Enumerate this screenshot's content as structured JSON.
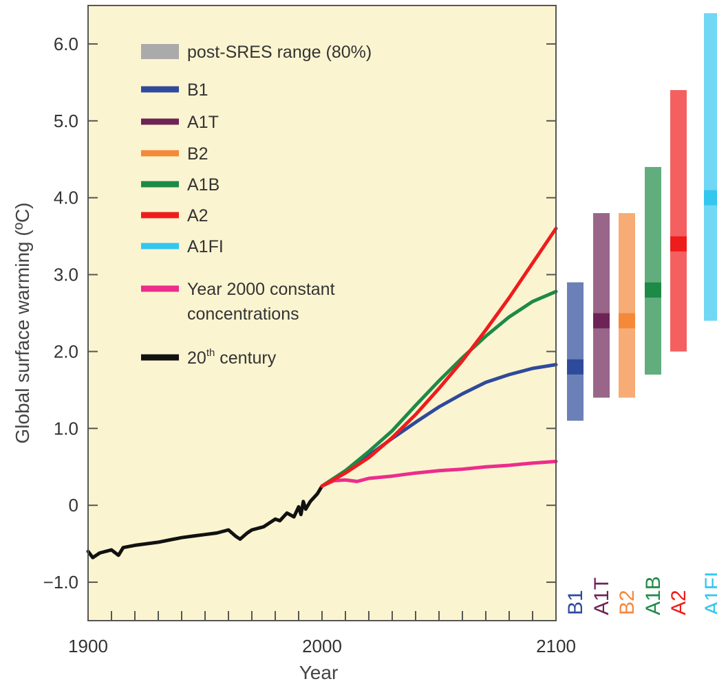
{
  "chart_data": {
    "type": "line",
    "xlabel": "Year",
    "ylabel": "Global surface warming (ºC)",
    "xlim": [
      1900,
      2100
    ],
    "ylim": [
      -1.5,
      6.5
    ],
    "x_ticks": [
      1900,
      2000,
      2100
    ],
    "x_tick_labels": [
      "1900",
      "2000",
      "2100"
    ],
    "y_ticks": [
      -1.0,
      0,
      1.0,
      2.0,
      3.0,
      4.0,
      5.0,
      6.0
    ],
    "y_tick_labels": [
      "−1.0",
      "0",
      "1.0",
      "2.0",
      "3.0",
      "4.0",
      "5.0",
      "6.0"
    ],
    "plot_background": "#fbf4d0",
    "legend_position": "top-left",
    "legend": [
      {
        "key": "range",
        "label": "post-SRES range (80%)",
        "color": "#aaaaaa"
      },
      {
        "key": "B1",
        "label": "B1",
        "color": "#2e4a9a"
      },
      {
        "key": "A1T",
        "label": "A1T",
        "color": "#6e2357"
      },
      {
        "key": "B2",
        "label": "B2",
        "color": "#f4893a"
      },
      {
        "key": "A1B",
        "label": "A1B",
        "color": "#1e8a47"
      },
      {
        "key": "A2",
        "label": "A2",
        "color": "#ef1c1c"
      },
      {
        "key": "A1FI",
        "label": "A1FI",
        "color": "#33c6ef"
      },
      {
        "key": "commit",
        "label_lines": [
          "Year 2000 constant",
          "concentrations"
        ],
        "color": "#ec2d8c"
      },
      {
        "key": "hist",
        "label_main": "20",
        "label_sup": "th",
        "label_rest": " century",
        "color": "#111111"
      }
    ],
    "series": [
      {
        "key": "hist",
        "color": "#111111",
        "x": [
          1900,
          1902,
          1905,
          1910,
          1913,
          1915,
          1920,
          1925,
          1930,
          1935,
          1940,
          1945,
          1950,
          1955,
          1960,
          1963,
          1965,
          1968,
          1970,
          1975,
          1980,
          1982,
          1985,
          1988,
          1990,
          1991,
          1992,
          1993,
          1995,
          1998,
          2000
        ],
        "y": [
          -0.6,
          -0.68,
          -0.62,
          -0.58,
          -0.65,
          -0.55,
          -0.52,
          -0.5,
          -0.48,
          -0.45,
          -0.42,
          -0.4,
          -0.38,
          -0.36,
          -0.32,
          -0.4,
          -0.44,
          -0.36,
          -0.32,
          -0.28,
          -0.18,
          -0.2,
          -0.1,
          -0.15,
          -0.02,
          -0.12,
          0.05,
          -0.05,
          0.05,
          0.15,
          0.25
        ]
      },
      {
        "key": "commit",
        "color": "#ec2d8c",
        "x": [
          2000,
          2005,
          2010,
          2015,
          2020,
          2030,
          2040,
          2050,
          2060,
          2070,
          2080,
          2090,
          2100
        ],
        "y": [
          0.25,
          0.32,
          0.33,
          0.31,
          0.35,
          0.38,
          0.42,
          0.45,
          0.47,
          0.5,
          0.52,
          0.55,
          0.57
        ]
      },
      {
        "key": "B1",
        "color": "#2e4a9a",
        "x": [
          2000,
          2010,
          2020,
          2030,
          2040,
          2050,
          2060,
          2070,
          2080,
          2090,
          2100
        ],
        "y": [
          0.25,
          0.45,
          0.65,
          0.87,
          1.08,
          1.28,
          1.45,
          1.6,
          1.7,
          1.78,
          1.83
        ]
      },
      {
        "key": "A1B",
        "color": "#1e8a47",
        "x": [
          2000,
          2010,
          2020,
          2030,
          2040,
          2050,
          2060,
          2070,
          2080,
          2090,
          2100
        ],
        "y": [
          0.25,
          0.45,
          0.7,
          0.97,
          1.3,
          1.62,
          1.92,
          2.2,
          2.45,
          2.65,
          2.78
        ]
      },
      {
        "key": "A2",
        "color": "#ef1c1c",
        "x": [
          2000,
          2010,
          2020,
          2030,
          2040,
          2050,
          2060,
          2070,
          2080,
          2090,
          2100
        ],
        "y": [
          0.25,
          0.42,
          0.62,
          0.88,
          1.18,
          1.52,
          1.88,
          2.28,
          2.7,
          3.15,
          3.6
        ]
      }
    ],
    "bars": [
      {
        "label": "B1",
        "low": 1.1,
        "high": 2.9,
        "best": 1.8,
        "color": "#2e4a9a"
      },
      {
        "label": "A1T",
        "low": 1.4,
        "high": 3.8,
        "best": 2.4,
        "color": "#6e2357"
      },
      {
        "label": "B2",
        "low": 1.4,
        "high": 3.8,
        "best": 2.4,
        "color": "#f4893a"
      },
      {
        "label": "A1B",
        "low": 1.7,
        "high": 4.4,
        "best": 2.8,
        "color": "#1e8a47"
      },
      {
        "label": "A2",
        "low": 2.0,
        "high": 5.4,
        "best": 3.4,
        "color": "#ef1c1c"
      },
      {
        "label": "A1FI",
        "low": 2.4,
        "high": 6.4,
        "best": 4.0,
        "color": "#33c6ef"
      }
    ]
  }
}
